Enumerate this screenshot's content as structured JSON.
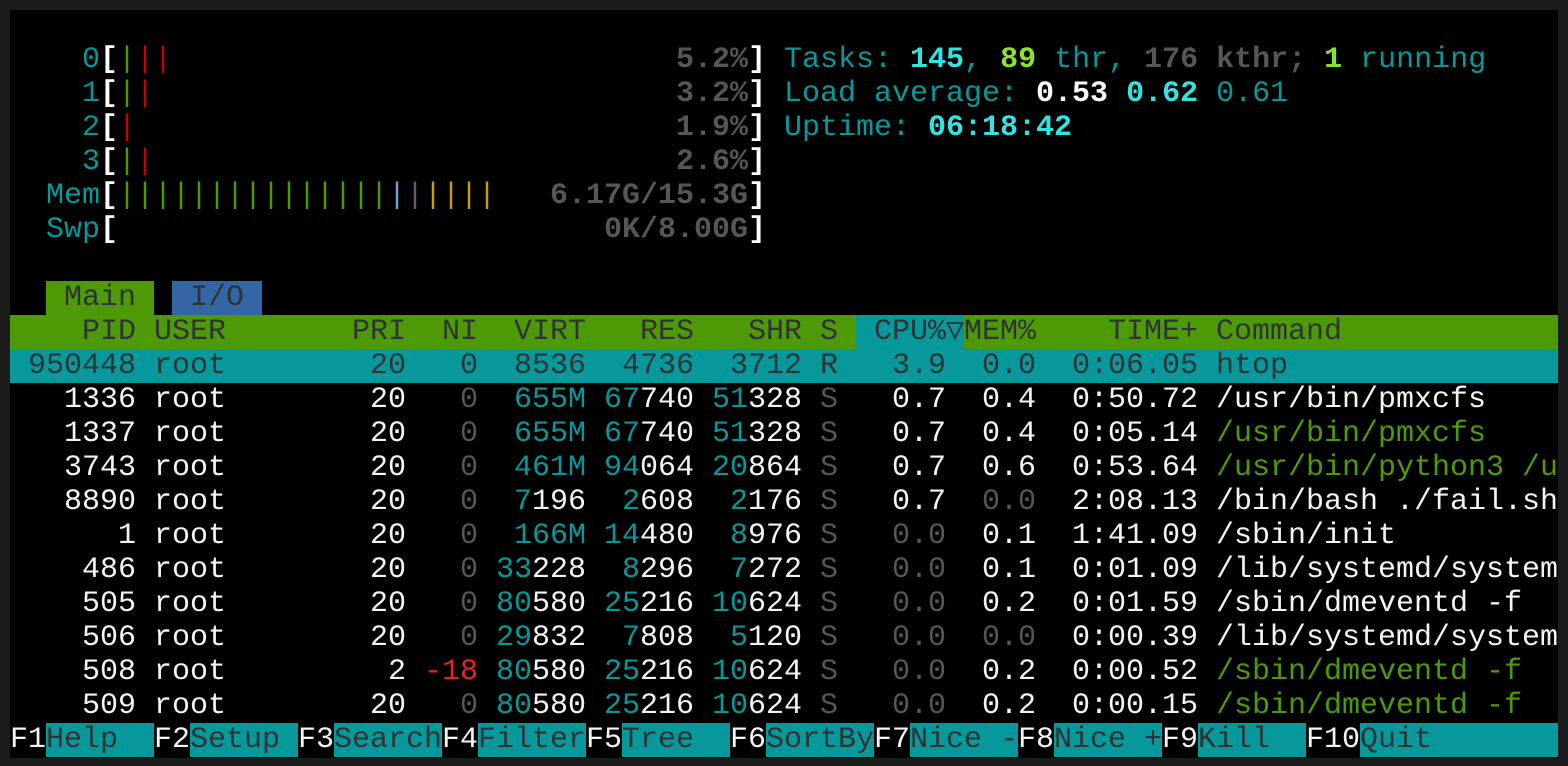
{
  "colors": {
    "teal": "#06989a",
    "green": "#4e9a06",
    "blue": "#3465a4",
    "bar_green": "#4e9a06",
    "bar_red": "#cc0000",
    "bar_blue": "#729fcf",
    "bar_magenta": "#75507b",
    "bar_yellow": "#c4a000"
  },
  "meters": [
    {
      "label": "0",
      "bars": [
        "green",
        "red",
        "red"
      ],
      "value": "5.2%"
    },
    {
      "label": "1",
      "bars": [
        "green",
        "red"
      ],
      "value": "3.2%"
    },
    {
      "label": "2",
      "bars": [
        "red"
      ],
      "value": "1.9%"
    },
    {
      "label": "3",
      "bars": [
        "green",
        "red"
      ],
      "value": "2.6%"
    },
    {
      "label": "Mem",
      "bars": [
        "green",
        "green",
        "green",
        "green",
        "green",
        "green",
        "green",
        "green",
        "green",
        "green",
        "green",
        "green",
        "green",
        "green",
        "green",
        "blue",
        "magenta",
        "yellow",
        "yellow",
        "yellow",
        "yellow"
      ],
      "value": "6.17G/15.3G"
    },
    {
      "label": "Swp",
      "bars": [],
      "value": "0K/8.00G"
    }
  ],
  "summary": {
    "tasks_label": "Tasks: ",
    "tasks": "145",
    "sep1": ", ",
    "threads": "89",
    "thr_label": " thr, ",
    "kthreads": "176",
    "kthr_label": " kthr; ",
    "running": "1",
    "running_label": " running",
    "load_label": "Load average: ",
    "load1": "0.53",
    "load5": "0.62",
    "load15": "0.61",
    "uptime_label": "Uptime: ",
    "uptime": "06:18:42"
  },
  "tabs": [
    {
      "label": "Main",
      "active": true
    },
    {
      "label": "I/O",
      "active": false
    }
  ],
  "columns": [
    "PID",
    "USER",
    "PRI",
    "NI",
    "VIRT",
    "RES",
    "SHR",
    "S",
    "CPU%▽",
    "MEM%",
    "TIME+",
    "Command"
  ],
  "sort_column": "CPU%",
  "processes": [
    {
      "pid": "950448",
      "user": "root",
      "pri": "20",
      "ni": "0",
      "virt": "8536",
      "res": "4736",
      "shr": "3712",
      "s": "R",
      "cpu": "3.9",
      "mem": "0.0",
      "time": "0:06.05",
      "cmd": "htop",
      "selected": true
    },
    {
      "pid": "1336",
      "user": "root",
      "pri": "20",
      "ni": "0",
      "virt": "655M",
      "res": "67740",
      "shr": "51328",
      "s": "S",
      "cpu": "0.7",
      "mem": "0.4",
      "time": "0:50.72",
      "cmd": "/usr/bin/pmxcfs"
    },
    {
      "pid": "1337",
      "user": "root",
      "pri": "20",
      "ni": "0",
      "virt": "655M",
      "res": "67740",
      "shr": "51328",
      "s": "S",
      "cpu": "0.7",
      "mem": "0.4",
      "time": "0:05.14",
      "cmd": "/usr/bin/pmxcfs",
      "thread": true
    },
    {
      "pid": "3743",
      "user": "root",
      "pri": "20",
      "ni": "0",
      "virt": "461M",
      "res": "94064",
      "shr": "20864",
      "s": "S",
      "cpu": "0.7",
      "mem": "0.6",
      "time": "0:53.64",
      "cmd": "/usr/bin/python3 /u",
      "thread": true
    },
    {
      "pid": "8890",
      "user": "root",
      "pri": "20",
      "ni": "0",
      "virt": "7196",
      "res": "2608",
      "shr": "2176",
      "s": "S",
      "cpu": "0.7",
      "mem": "0.0",
      "time": "2:08.13",
      "cmd": "/bin/bash ./fail.sh"
    },
    {
      "pid": "1",
      "user": "root",
      "pri": "20",
      "ni": "0",
      "virt": "166M",
      "res": "14480",
      "shr": "8976",
      "s": "S",
      "cpu": "0.0",
      "mem": "0.1",
      "time": "1:41.09",
      "cmd": "/sbin/init"
    },
    {
      "pid": "486",
      "user": "root",
      "pri": "20",
      "ni": "0",
      "virt": "33228",
      "res": "8296",
      "shr": "7272",
      "s": "S",
      "cpu": "0.0",
      "mem": "0.1",
      "time": "0:01.09",
      "cmd": "/lib/systemd/system"
    },
    {
      "pid": "505",
      "user": "root",
      "pri": "20",
      "ni": "0",
      "virt": "80580",
      "res": "25216",
      "shr": "10624",
      "s": "S",
      "cpu": "0.0",
      "mem": "0.2",
      "time": "0:01.59",
      "cmd": "/sbin/dmeventd -f"
    },
    {
      "pid": "506",
      "user": "root",
      "pri": "20",
      "ni": "0",
      "virt": "29832",
      "res": "7808",
      "shr": "5120",
      "s": "S",
      "cpu": "0.0",
      "mem": "0.0",
      "time": "0:00.39",
      "cmd": "/lib/systemd/system"
    },
    {
      "pid": "508",
      "user": "root",
      "pri": "2",
      "ni": "-18",
      "virt": "80580",
      "res": "25216",
      "shr": "10624",
      "s": "S",
      "cpu": "0.0",
      "mem": "0.2",
      "time": "0:00.52",
      "cmd": "/sbin/dmeventd -f",
      "thread": true
    },
    {
      "pid": "509",
      "user": "root",
      "pri": "20",
      "ni": "0",
      "virt": "80580",
      "res": "25216",
      "shr": "10624",
      "s": "S",
      "cpu": "0.0",
      "mem": "0.2",
      "time": "0:00.15",
      "cmd": "/sbin/dmeventd -f",
      "thread": true
    }
  ],
  "footer": [
    {
      "key": "F1",
      "label": "Help"
    },
    {
      "key": "F2",
      "label": "Setup"
    },
    {
      "key": "F3",
      "label": "Search"
    },
    {
      "key": "F4",
      "label": "Filter"
    },
    {
      "key": "F5",
      "label": "Tree"
    },
    {
      "key": "F6",
      "label": "SortBy"
    },
    {
      "key": "F7",
      "label": "Nice -"
    },
    {
      "key": "F8",
      "label": "Nice +"
    },
    {
      "key": "F9",
      "label": "Kill"
    },
    {
      "key": "F10",
      "label": "Quit"
    }
  ]
}
